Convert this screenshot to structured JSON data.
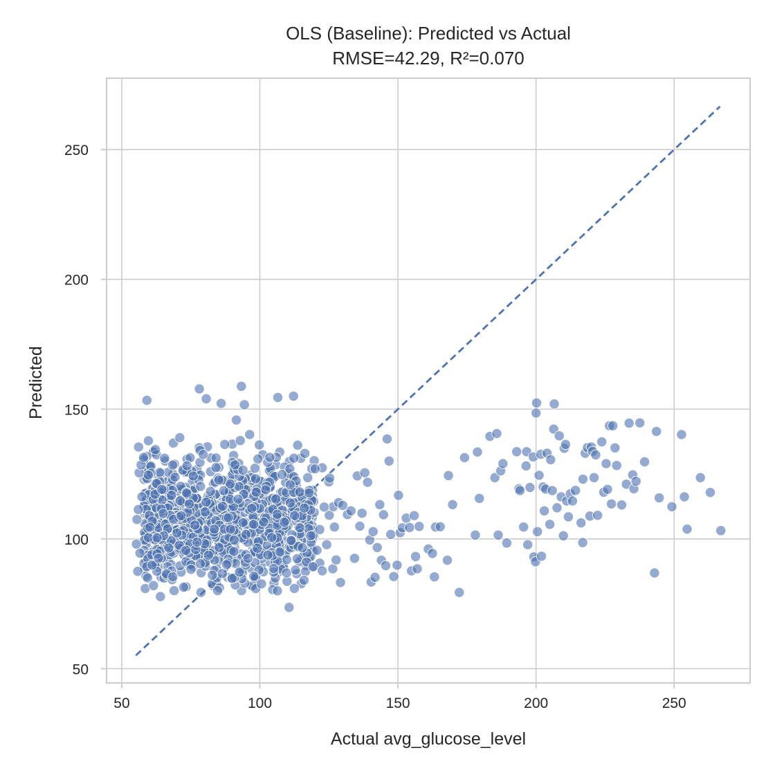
{
  "chart_data": {
    "type": "scatter",
    "title": "OLS (Baseline): Predicted vs Actual",
    "subtitle": "RMSE=42.29, R²=0.070",
    "xlabel": "Actual avg_glucose_level",
    "ylabel": "Predicted",
    "xlim": [
      44.5,
      277.5
    ],
    "ylim": [
      44.5,
      277.5
    ],
    "xticks": [
      50,
      100,
      150,
      200,
      250
    ],
    "yticks": [
      50,
      100,
      150,
      200,
      250
    ],
    "grid": true,
    "point_color": "#4c72b0",
    "reference_line": {
      "style": "dashed",
      "from": [
        55.1,
        55.1
      ],
      "to": [
        266.6,
        266.6
      ]
    },
    "cluster_summary": {
      "n_points_approx": 1000,
      "x_range": [
        55,
        128
      ],
      "y_range": [
        74,
        160
      ]
    },
    "points": [
      [
        55.3,
        98
      ],
      [
        55.5,
        107.5
      ],
      [
        55.8,
        87.5
      ],
      [
        56.0,
        111.3
      ],
      [
        56.3,
        125.5
      ],
      [
        56.1,
        135.4
      ],
      [
        56.6,
        94.5
      ],
      [
        57.0,
        128.5
      ],
      [
        57.3,
        116.2
      ],
      [
        57.9,
        131.4
      ],
      [
        58.5,
        80.9
      ],
      [
        59.1,
        153.4
      ],
      [
        59.6,
        124.6
      ],
      [
        60.2,
        104.5
      ],
      [
        61.0,
        89.9
      ],
      [
        61.5,
        82.0
      ],
      [
        62.2,
        134.4
      ],
      [
        62.8,
        100.4
      ],
      [
        63.3,
        92.6
      ],
      [
        64.0,
        77.8
      ],
      [
        64.5,
        119.1
      ],
      [
        65.0,
        109.8
      ],
      [
        65.5,
        131.1
      ],
      [
        66.2,
        86.6
      ],
      [
        67.0,
        96.5
      ],
      [
        68.0,
        116.8
      ],
      [
        68.5,
        85.4
      ],
      [
        69.3,
        123.8
      ],
      [
        70.0,
        102.3
      ],
      [
        71.0,
        139.0
      ],
      [
        71.5,
        108.9
      ],
      [
        72.4,
        81.4
      ],
      [
        73.2,
        95.6
      ],
      [
        73.6,
        128.2
      ],
      [
        74.5,
        113.5
      ],
      [
        75.1,
        88.3
      ],
      [
        75.9,
        124.2
      ],
      [
        76.5,
        105.3
      ],
      [
        77.3,
        98.8
      ],
      [
        78.1,
        157.8
      ],
      [
        78.7,
        79.4
      ],
      [
        79.5,
        132.5
      ],
      [
        80.2,
        110.4
      ],
      [
        80.6,
        154.0
      ],
      [
        81.4,
        93.7
      ],
      [
        82.1,
        118.3
      ],
      [
        82.8,
        86.0
      ],
      [
        83.5,
        103.8
      ],
      [
        84.1,
        127.5
      ],
      [
        84.7,
        80.1
      ],
      [
        85.3,
        96.7
      ],
      [
        86.0,
        152.2
      ],
      [
        86.5,
        112.6
      ],
      [
        87.3,
        136.4
      ],
      [
        88.0,
        90.1
      ],
      [
        88.6,
        108.2
      ],
      [
        89.3,
        121.2
      ],
      [
        90.0,
        84.8
      ],
      [
        90.7,
        99.6
      ],
      [
        91.5,
        145.8
      ],
      [
        92.1,
        115.3
      ],
      [
        92.6,
        87.2
      ],
      [
        93.3,
        158.8
      ],
      [
        93.9,
        126.5
      ],
      [
        94.4,
        151.7
      ],
      [
        95.0,
        101.7
      ],
      [
        95.7,
        92.5
      ],
      [
        96.3,
        140.2
      ],
      [
        97.1,
        111.8
      ],
      [
        97.8,
        85.6
      ],
      [
        98.5,
        123.2
      ],
      [
        99.1,
        96.4
      ],
      [
        99.8,
        136.2
      ],
      [
        100.6,
        82.7
      ],
      [
        101.4,
        106.5
      ],
      [
        102.1,
        118.9
      ],
      [
        102.9,
        93.8
      ],
      [
        103.6,
        131.4
      ],
      [
        104.3,
        100.5
      ],
      [
        105.0,
        88.6
      ],
      [
        105.8,
        115.4
      ],
      [
        106.5,
        154.5
      ],
      [
        107.3,
        94.9
      ],
      [
        108.0,
        124.8
      ],
      [
        108.9,
        106.4
      ],
      [
        109.7,
        86.9
      ],
      [
        110.6,
        73.6
      ],
      [
        111.3,
        99.3
      ],
      [
        112.2,
        155.0
      ],
      [
        112.9,
        88.0
      ],
      [
        113.7,
        136.1
      ],
      [
        114.5,
        104.3
      ],
      [
        115.4,
        96.6
      ],
      [
        116.1,
        111.9
      ],
      [
        116.9,
        91.1
      ],
      [
        117.8,
        117.7
      ],
      [
        118.4,
        101.2
      ],
      [
        119.2,
        89.3
      ],
      [
        120.0,
        127.0
      ],
      [
        120.7,
        95.6
      ],
      [
        121.7,
        103.6
      ],
      [
        122.6,
        87.7
      ],
      [
        123.3,
        112.3
      ],
      [
        124.2,
        97.8
      ],
      [
        125.3,
        123.4
      ],
      [
        126.4,
        88.5
      ],
      [
        127.0,
        104.6
      ],
      [
        127.6,
        91.9
      ],
      [
        128.5,
        114.0
      ],
      [
        129.2,
        83.2
      ],
      [
        130.0,
        112.9
      ],
      [
        131.7,
        109.4
      ],
      [
        133.0,
        110.8
      ],
      [
        134.3,
        92.5
      ],
      [
        135.3,
        124.3
      ],
      [
        136.2,
        104.9
      ],
      [
        137.0,
        109.9
      ],
      [
        138.0,
        125.5
      ],
      [
        139.0,
        121.8
      ],
      [
        139.8,
        99.6
      ],
      [
        140.3,
        83.4
      ],
      [
        141.0,
        102.8
      ],
      [
        141.7,
        85.2
      ],
      [
        142.5,
        96.7
      ],
      [
        143.4,
        113.2
      ],
      [
        144.0,
        91.8
      ],
      [
        144.8,
        109.3
      ],
      [
        145.6,
        89.7
      ],
      [
        146.1,
        138.5
      ],
      [
        146.8,
        130.0
      ],
      [
        147.4,
        101.7
      ],
      [
        148.5,
        85.5
      ],
      [
        149.7,
        89.9
      ],
      [
        150.2,
        116.8
      ],
      [
        150.8,
        102.4
      ],
      [
        151.6,
        104.3
      ],
      [
        153.0,
        108.0
      ],
      [
        154.2,
        104.4
      ],
      [
        154.9,
        87.7
      ],
      [
        155.9,
        109.0
      ],
      [
        156.4,
        93.2
      ],
      [
        157.0,
        88.5
      ],
      [
        157.7,
        104.8
      ],
      [
        161.0,
        96.1
      ],
      [
        162.5,
        94.4
      ],
      [
        163.2,
        85.4
      ],
      [
        163.6,
        104.6
      ],
      [
        165.3,
        104.7
      ],
      [
        167.9,
        91.8
      ],
      [
        168.3,
        124.4
      ],
      [
        169.8,
        113.2
      ],
      [
        172.2,
        79.4
      ],
      [
        174.1,
        131.3
      ],
      [
        178.0,
        101.5
      ],
      [
        178.8,
        133.5
      ],
      [
        179.5,
        115.6
      ],
      [
        183.3,
        139.5
      ],
      [
        185.1,
        123.6
      ],
      [
        185.8,
        140.6
      ],
      [
        186.3,
        101.5
      ],
      [
        187.2,
        126.2
      ],
      [
        188.0,
        129.0
      ],
      [
        189.4,
        98.4
      ],
      [
        193.0,
        133.6
      ],
      [
        193.8,
        119.3
      ],
      [
        194.2,
        118.6
      ],
      [
        195.5,
        104.6
      ],
      [
        196.4,
        128.1
      ],
      [
        196.6,
        133.6
      ],
      [
        197.0,
        97.8
      ],
      [
        197.8,
        119.8
      ],
      [
        199.0,
        131.6
      ],
      [
        199.2,
        93.1
      ],
      [
        199.8,
        91.2
      ],
      [
        200.0,
        148.5
      ],
      [
        200.2,
        152.4
      ],
      [
        200.5,
        102.8
      ],
      [
        201.1,
        124.5
      ],
      [
        201.7,
        132.6
      ],
      [
        202.0,
        93.3
      ],
      [
        202.6,
        120.0
      ],
      [
        203.0,
        110.8
      ],
      [
        203.5,
        119.2
      ],
      [
        204.0,
        133.0
      ],
      [
        205.0,
        105.6
      ],
      [
        205.3,
        130.5
      ],
      [
        205.9,
        118.6
      ],
      [
        206.4,
        142.3
      ],
      [
        206.6,
        152.0
      ],
      [
        207.6,
        112.0
      ],
      [
        208.4,
        139.7
      ],
      [
        209.1,
        116.2
      ],
      [
        209.9,
        101.2
      ],
      [
        210.2,
        134.9
      ],
      [
        210.7,
        136.4
      ],
      [
        211.1,
        114.6
      ],
      [
        211.7,
        108.5
      ],
      [
        212.4,
        117.4
      ],
      [
        213.2,
        114.6
      ],
      [
        214.3,
        118.7
      ],
      [
        216.3,
        106.2
      ],
      [
        216.9,
        98.6
      ],
      [
        217.0,
        123.0
      ],
      [
        217.8,
        133.0
      ],
      [
        218.6,
        135.2
      ],
      [
        219.5,
        108.8
      ],
      [
        220.0,
        135.4
      ],
      [
        220.5,
        133.7
      ],
      [
        221.0,
        123.6
      ],
      [
        221.6,
        132.4
      ],
      [
        222.3,
        109.1
      ],
      [
        223.8,
        137.4
      ],
      [
        224.5,
        118.0
      ],
      [
        225.4,
        129.0
      ],
      [
        225.9,
        119.1
      ],
      [
        226.6,
        143.6
      ],
      [
        227.3,
        113.5
      ],
      [
        227.8,
        143.6
      ],
      [
        228.6,
        135.1
      ],
      [
        229.2,
        128.3
      ],
      [
        231.0,
        113.1
      ],
      [
        232.7,
        121.1
      ],
      [
        233.7,
        144.6
      ],
      [
        235.0,
        124.7
      ],
      [
        235.4,
        119.3
      ],
      [
        236.2,
        122.2
      ],
      [
        237.6,
        144.7
      ],
      [
        239.3,
        129.7
      ],
      [
        242.9,
        86.9
      ],
      [
        243.6,
        141.4
      ],
      [
        244.6,
        115.8
      ],
      [
        249.2,
        112.4
      ],
      [
        252.7,
        140.2
      ],
      [
        253.7,
        116.2
      ],
      [
        254.7,
        103.8
      ],
      [
        259.5,
        123.6
      ],
      [
        263.1,
        117.9
      ],
      [
        266.9,
        103.2
      ]
    ]
  }
}
